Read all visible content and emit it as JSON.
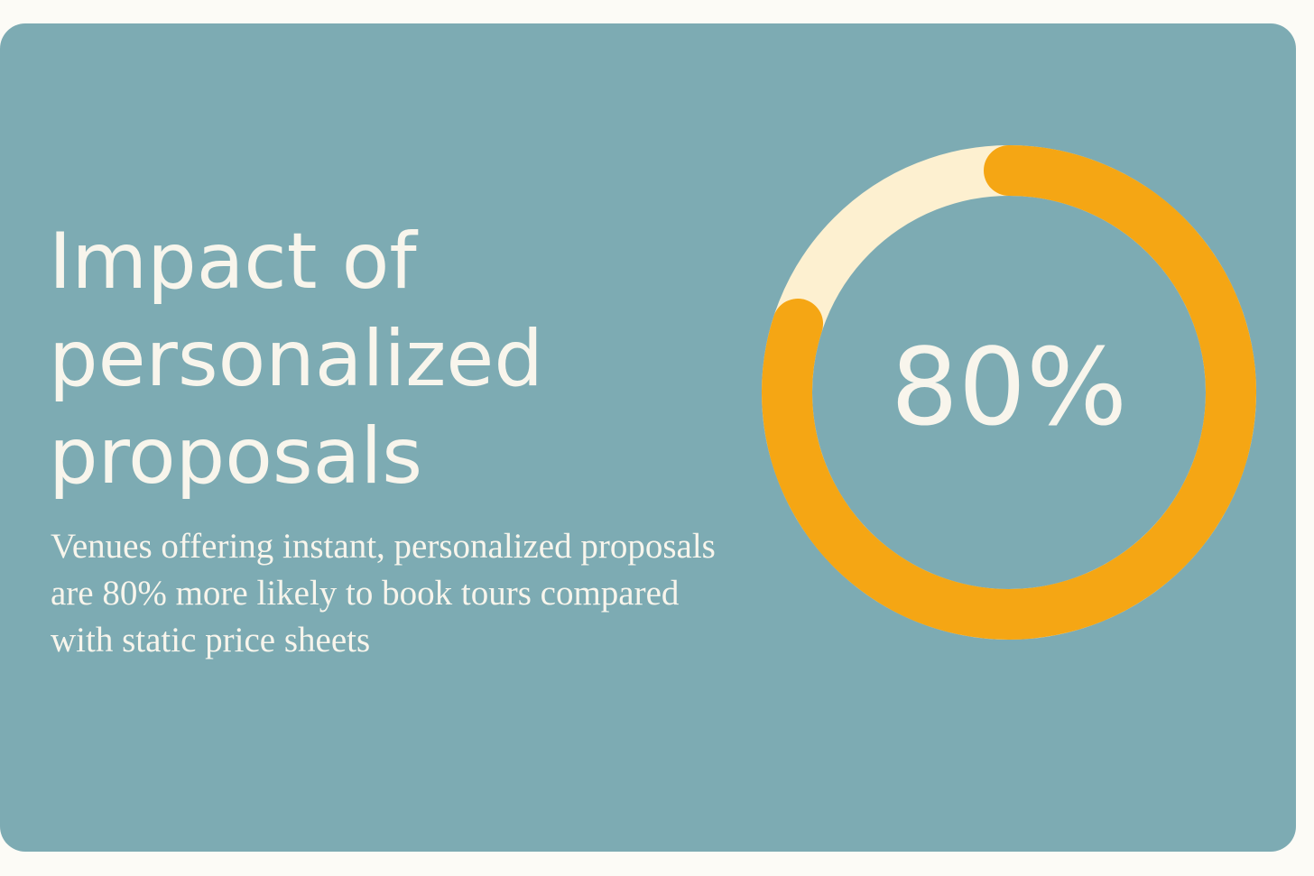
{
  "chart_data": {
    "type": "donut",
    "title": "Impact of personalized proposals",
    "subtitle": "Venues offering instant, personalized proposals are 80% more likely to book tours compared with static price sheets",
    "values": [
      80
    ],
    "value_labels": [
      "80%"
    ],
    "ylim": [
      0,
      100
    ],
    "color": "#f5a614",
    "track_color": "#fdf0d0"
  }
}
